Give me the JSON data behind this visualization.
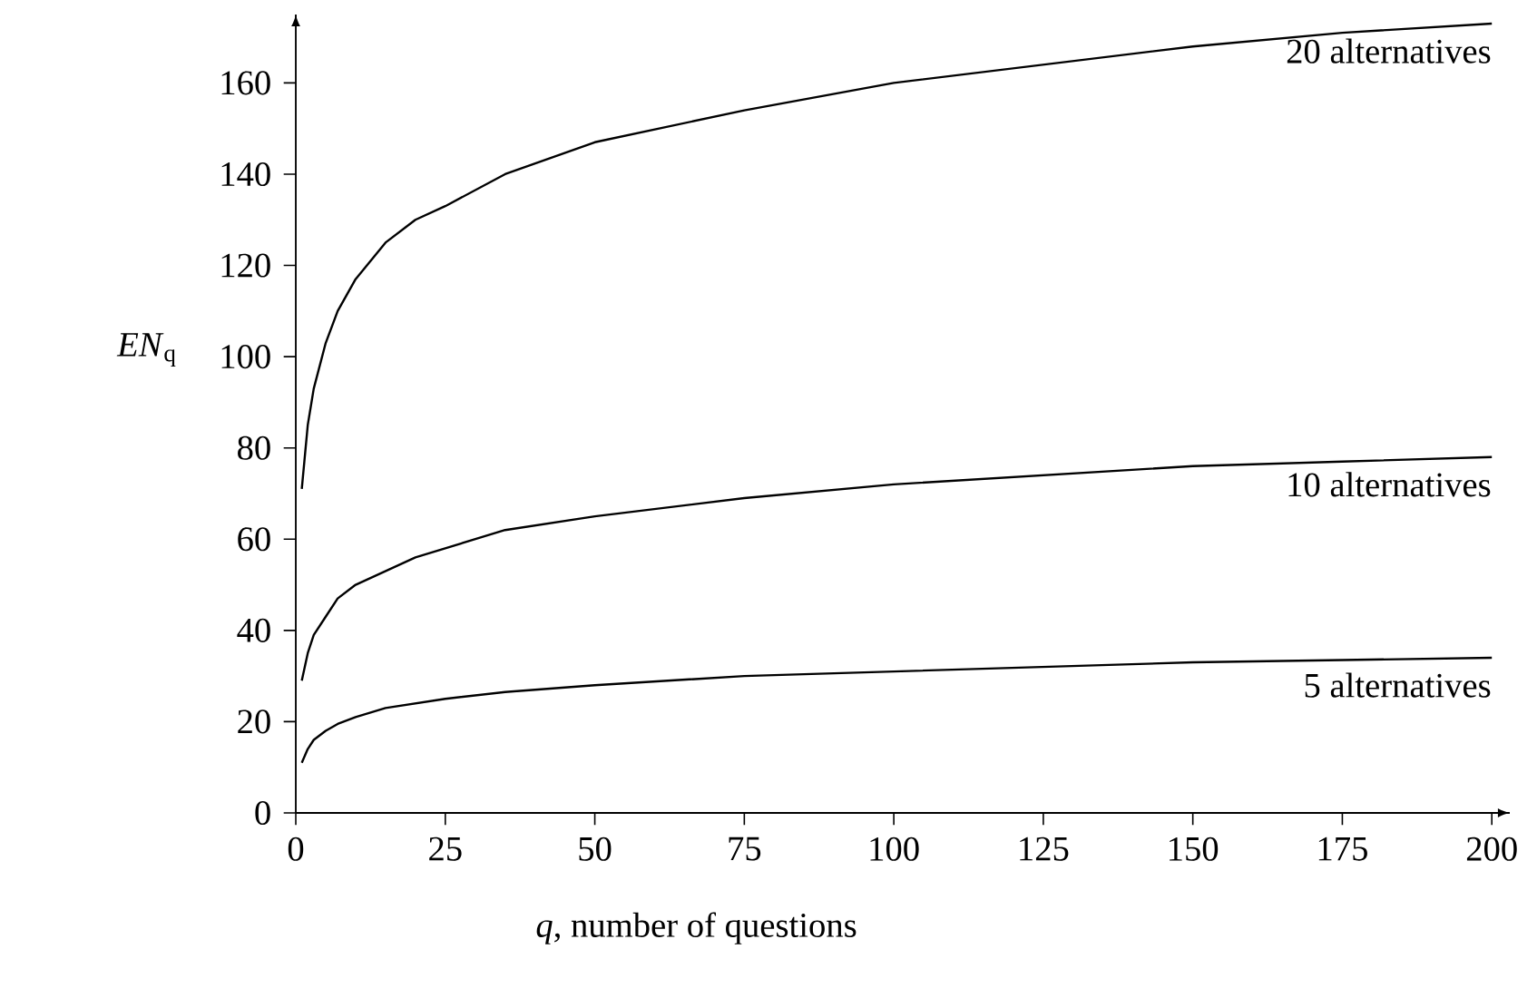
{
  "chart_data": {
    "type": "line",
    "xlabel": "*q*, number of questions",
    "ylabel": "*EN*$_{q}$",
    "xlim": [
      0,
      203
    ],
    "ylim": [
      0,
      175
    ],
    "xticks": [
      0,
      25,
      50,
      75,
      100,
      125,
      150,
      175,
      200
    ],
    "yticks": [
      0,
      20,
      40,
      60,
      80,
      100,
      120,
      140,
      160
    ],
    "grid": false,
    "marker": "none",
    "line_style": "solid",
    "series": [
      {
        "color": "#000000",
        "x": [
          1,
          2,
          3,
          5,
          7,
          10,
          15,
          20,
          25,
          35,
          50,
          75,
          100,
          125,
          150,
          175,
          200
        ],
        "values": [
          71,
          85,
          93,
          103,
          110,
          117,
          125,
          130,
          133,
          140,
          147,
          154,
          160,
          164,
          168,
          171,
          173
        ]
      },
      {
        "color": "#000000",
        "x": [
          1,
          2,
          3,
          5,
          7,
          10,
          15,
          20,
          25,
          35,
          50,
          75,
          100,
          125,
          150,
          175,
          200
        ],
        "values": [
          29,
          35,
          39,
          43,
          47,
          50,
          53,
          56,
          58,
          62,
          65,
          69,
          72,
          74,
          76,
          77,
          78
        ]
      },
      {
        "color": "#000000",
        "x": [
          1,
          2,
          3,
          5,
          7,
          10,
          15,
          20,
          25,
          35,
          50,
          75,
          100,
          125,
          150,
          175,
          200
        ],
        "values": [
          11,
          14,
          16,
          18,
          19.5,
          21,
          23,
          24,
          25,
          26.5,
          28,
          30,
          31,
          32,
          33,
          33.5,
          34
        ]
      }
    ],
    "annotations": [
      "20 alternatives",
      "10 alternatives",
      "5 alternatives"
    ]
  }
}
